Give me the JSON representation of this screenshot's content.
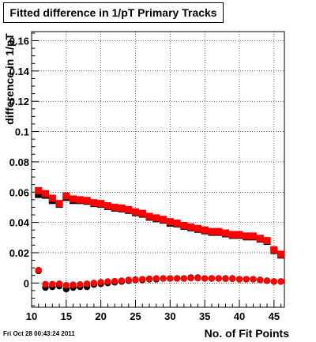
{
  "title": "Fitted difference in 1/pT Primary Tracks",
  "footer": "Fri Oct 28 00:43:24 2011",
  "chart_data": {
    "type": "scatter",
    "title": "Fitted difference in 1/pT Primary Tracks",
    "xlabel": "No. of Fit Points",
    "ylabel": "difference in 1/pT",
    "xlim": [
      10,
      46.5
    ],
    "ylim": [
      -0.016,
      0.166
    ],
    "x_ticks": [
      10,
      15,
      20,
      25,
      30,
      35,
      40,
      45
    ],
    "x_tick_labels": [
      "10",
      "15",
      "20",
      "25",
      "30",
      "35",
      "40",
      "45"
    ],
    "y_ticks": [
      0,
      0.02,
      0.04,
      0.06,
      0.08,
      0.1,
      0.12,
      0.14,
      0.16
    ],
    "y_tick_labels": [
      "0",
      "0.02",
      "0.04",
      "0.06",
      "0.08",
      "0.1",
      "0.12",
      "0.14",
      "0.16"
    ],
    "grid": true,
    "colors": {
      "series_red": "#ff0000",
      "series_black": "#000000"
    },
    "series": [
      {
        "marker": "square",
        "color": "#000000",
        "x": [
          11,
          12,
          13,
          14,
          15,
          16,
          17,
          18,
          19,
          20,
          21,
          22,
          23,
          24,
          25,
          26,
          27,
          28,
          29,
          30,
          31,
          32,
          33,
          34,
          35,
          36,
          37,
          38,
          39,
          40,
          41,
          42,
          43,
          44,
          45,
          46
        ],
        "y": [
          0.0585,
          0.058,
          0.0545,
          0.052,
          0.0565,
          0.0545,
          0.0545,
          0.054,
          0.0525,
          0.052,
          0.0505,
          0.0495,
          0.049,
          0.048,
          0.0465,
          0.0455,
          0.0435,
          0.0425,
          0.0415,
          0.0395,
          0.039,
          0.0375,
          0.0365,
          0.0355,
          0.0345,
          0.0335,
          0.0335,
          0.0325,
          0.0315,
          0.0315,
          0.0305,
          0.0305,
          0.029,
          0.0275,
          0.0215,
          0.0185
        ]
      },
      {
        "marker": "square",
        "color": "#ff0000",
        "x": [
          11,
          12,
          13,
          14,
          15,
          16,
          17,
          18,
          19,
          20,
          21,
          22,
          23,
          24,
          25,
          26,
          27,
          28,
          29,
          30,
          31,
          32,
          33,
          34,
          35,
          36,
          37,
          38,
          39,
          40,
          41,
          42,
          43,
          44,
          45,
          46
        ],
        "y": [
          0.061,
          0.059,
          0.056,
          0.0525,
          0.0575,
          0.0555,
          0.055,
          0.0545,
          0.053,
          0.0525,
          0.051,
          0.05,
          0.0495,
          0.0485,
          0.047,
          0.046,
          0.044,
          0.043,
          0.042,
          0.0405,
          0.0395,
          0.038,
          0.037,
          0.036,
          0.035,
          0.034,
          0.034,
          0.033,
          0.032,
          0.032,
          0.031,
          0.031,
          0.0295,
          0.028,
          0.022,
          0.019
        ]
      },
      {
        "marker": "circle",
        "color": "#000000",
        "x": [
          11,
          12,
          13,
          14,
          15,
          16,
          17,
          18,
          19,
          20,
          21,
          22,
          23,
          24,
          25,
          26,
          27,
          28,
          29,
          30,
          31,
          32,
          33,
          34,
          35,
          36,
          37,
          38,
          39,
          40,
          41,
          42,
          43,
          44,
          45,
          46
        ],
        "y": [
          0.008,
          -0.003,
          -0.0025,
          -0.002,
          -0.004,
          -0.003,
          -0.0025,
          -0.0025,
          -0.001,
          -0.0005,
          0,
          0.0005,
          0.001,
          0.0015,
          0.002,
          0.002,
          0.0025,
          0.0025,
          0.003,
          0.003,
          0.003,
          0.003,
          0.0035,
          0.0035,
          0.003,
          0.003,
          0.003,
          0.003,
          0.003,
          0.0025,
          0.0025,
          0.0025,
          0.002,
          0.0015,
          0.001,
          0.001
        ]
      },
      {
        "marker": "circle",
        "color": "#ff0000",
        "x": [
          11,
          12,
          13,
          14,
          15,
          16,
          17,
          18,
          19,
          20,
          21,
          22,
          23,
          24,
          25,
          26,
          27,
          28,
          29,
          30,
          31,
          32,
          33,
          34,
          35,
          36,
          37,
          38,
          39,
          40,
          41,
          42,
          43,
          44,
          45,
          46
        ],
        "y": [
          0.0085,
          -0.0008,
          -0.0008,
          -0.0005,
          -0.0015,
          -0.0012,
          -0.001,
          -0.0005,
          0,
          0.0005,
          0.001,
          0.0012,
          0.0015,
          0.002,
          0.0022,
          0.0025,
          0.0028,
          0.003,
          0.003,
          0.003,
          0.003,
          0.003,
          0.0032,
          0.0032,
          0.003,
          0.003,
          0.003,
          0.0028,
          0.0028,
          0.0025,
          0.0025,
          0.0025,
          0.002,
          0.0015,
          0.001,
          0.001
        ]
      }
    ]
  }
}
